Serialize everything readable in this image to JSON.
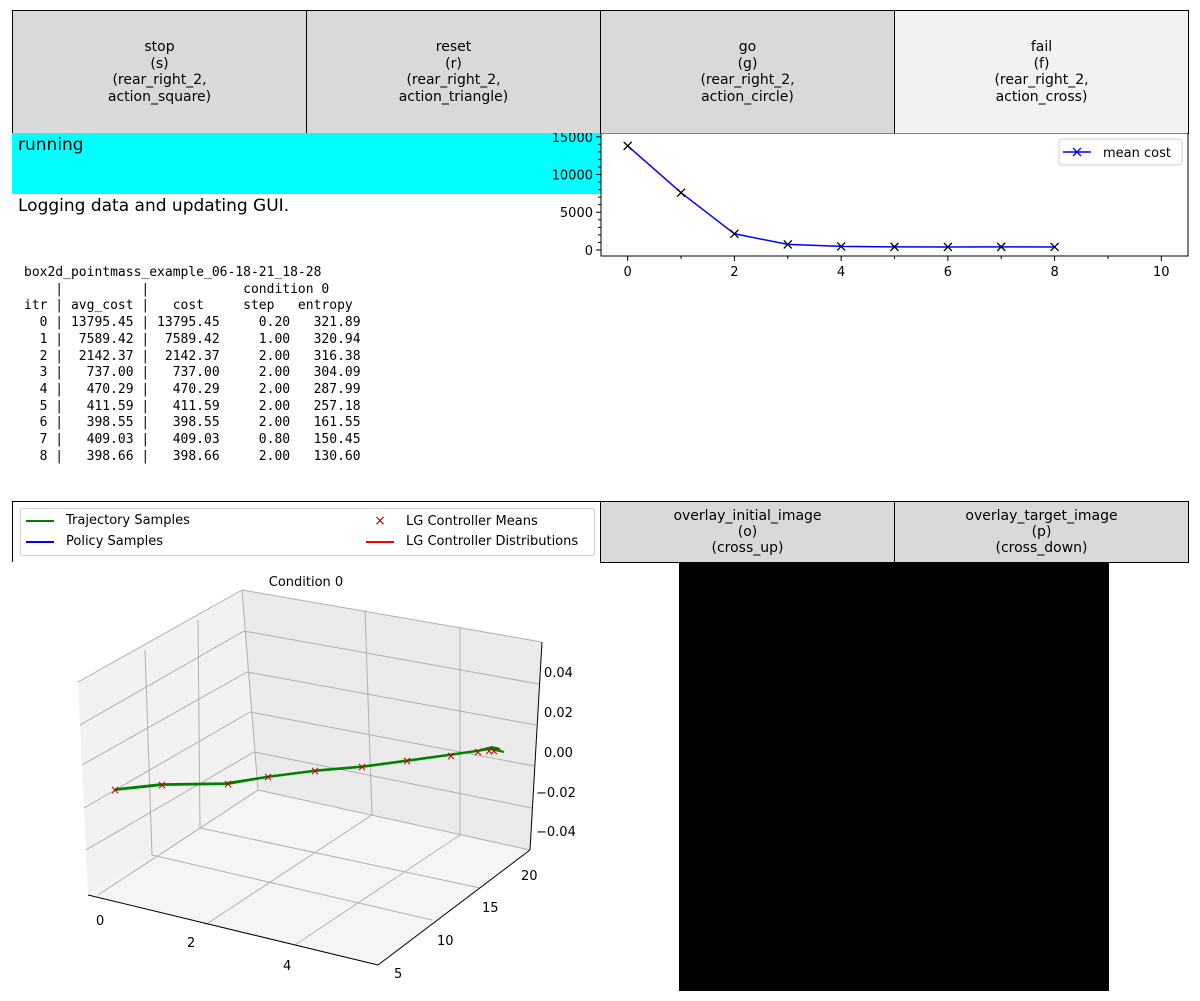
{
  "actions": [
    {
      "name": "stop",
      "key": "(s)",
      "trigger": "(rear_right_2,",
      "action": "action_square)",
      "active": true
    },
    {
      "name": "reset",
      "key": "(r)",
      "trigger": "(rear_right_2,",
      "action": "action_triangle)",
      "active": true
    },
    {
      "name": "go",
      "key": "(g)",
      "trigger": "(rear_right_2,",
      "action": "action_circle)",
      "active": true
    },
    {
      "name": "fail",
      "key": "(f)",
      "trigger": "(rear_right_2,",
      "action": "action_cross)",
      "active": false
    }
  ],
  "status": {
    "label": "running",
    "message": "Logging data and updating GUI.",
    "color": "#00ffff"
  },
  "log": {
    "experiment": "box2d_pointmass_example_06-18-21_18-28",
    "header_line1": "    |          |            condition 0",
    "header_line2": "itr | avg_cost |   cost     step   entropy",
    "rows": [
      "  0 | 13795.45 | 13795.45     0.20   321.89",
      "  1 |  7589.42 |  7589.42     1.00   320.94",
      "  2 |  2142.37 |  2142.37     2.00   316.38",
      "  3 |   737.00 |   737.00     2.00   304.09",
      "  4 |   470.29 |   470.29     2.00   287.99",
      "  5 |   411.59 |   411.59     2.00   257.18",
      "  6 |   398.55 |   398.55     2.00   161.55",
      "  7 |   409.03 |   409.03     0.80   150.45",
      "  8 |   398.66 |   398.66     2.00   130.60"
    ]
  },
  "chart_data": [
    {
      "type": "line",
      "x": [
        0,
        1,
        2,
        3,
        4,
        5,
        6,
        7,
        8
      ],
      "series": [
        {
          "name": "mean cost",
          "values": [
            13795.45,
            7589.42,
            2142.37,
            737.0,
            470.29,
            411.59,
            398.55,
            409.03,
            398.66
          ],
          "color": "#0000ff",
          "marker": "x"
        }
      ],
      "xlim": [
        -0.5,
        10.5
      ],
      "ylim": [
        -800,
        15500
      ],
      "xticks": [
        "0",
        "2",
        "4",
        "6",
        "8",
        "10"
      ],
      "yticks": [
        "0",
        "5000",
        "10000",
        "15000"
      ],
      "legend": "top-right",
      "grid": false
    },
    {
      "type": "line",
      "title": "Condition 0",
      "projection": "3d",
      "xticks": [
        "0",
        "2",
        "4"
      ],
      "yticks": [
        "5",
        "10",
        "15",
        "20"
      ],
      "zticks": [
        "0.04",
        "0.02",
        "0.00",
        "−0.02",
        "−0.04"
      ],
      "grid": true
    }
  ],
  "legend": {
    "items": [
      {
        "label": "Trajectory Samples",
        "color": "#008000",
        "style": "line"
      },
      {
        "label": "Policy Samples",
        "color": "#0000ff",
        "style": "line"
      },
      {
        "label": "LG Controller Means",
        "color": "#c00000",
        "style": "x"
      },
      {
        "label": "LG Controller Distributions",
        "color": "#ff0000",
        "style": "line"
      }
    ]
  },
  "overlays": [
    {
      "name": "overlay_initial_image",
      "key": "(o)",
      "trigger": "(cross_up)"
    },
    {
      "name": "overlay_target_image",
      "key": "(p)",
      "trigger": "(cross_down)"
    }
  ]
}
